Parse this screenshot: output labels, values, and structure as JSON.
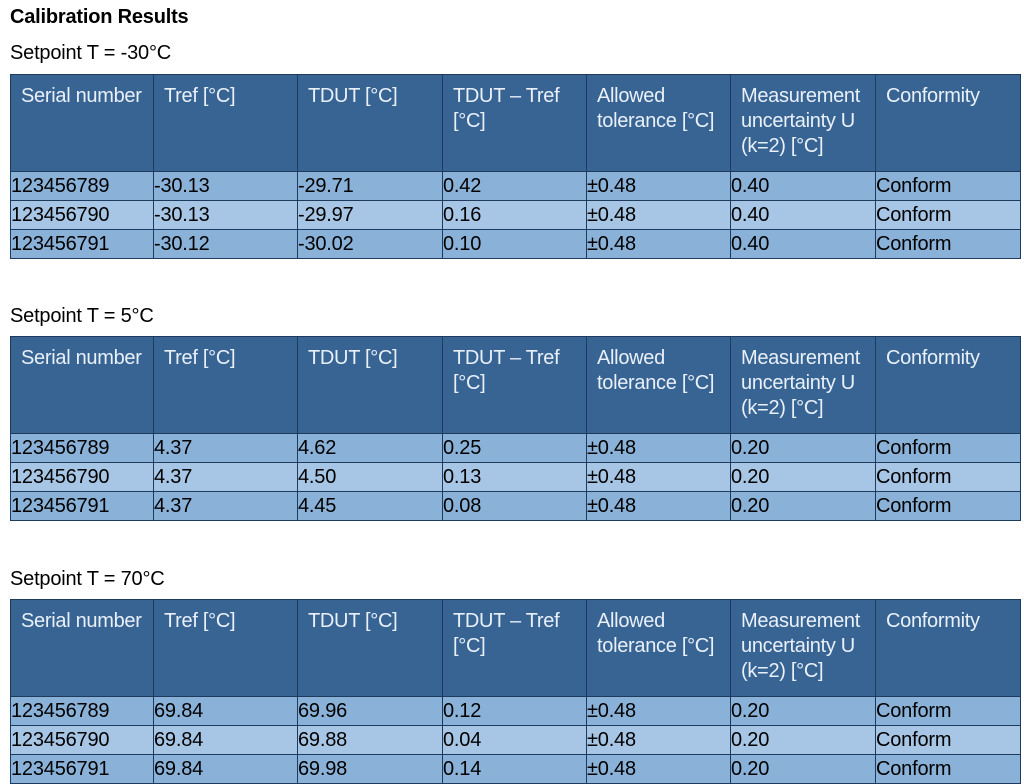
{
  "title": "Calibration Results",
  "headers": [
    "Serial number",
    "Tref [°C]",
    "TDUT [°C]",
    "TDUT – Tref [°C]",
    "Allowed tolerance [°C]",
    "Measurement uncertainty U (k=2) [°C]",
    "Conformity"
  ],
  "sections": [
    {
      "setpoint": "Setpoint T = -30°C",
      "rows": [
        {
          "serial": "123456789",
          "tref": "-30.13",
          "tdut": "-29.71",
          "diff": "0.42",
          "tolerance": "±0.48",
          "uncertainty": "0.40",
          "conformity": "Conform"
        },
        {
          "serial": "123456790",
          "tref": "-30.13",
          "tdut": "-29.97",
          "diff": "0.16",
          "tolerance": "±0.48",
          "uncertainty": "0.40",
          "conformity": "Conform"
        },
        {
          "serial": "123456791",
          "tref": "-30.12",
          "tdut": "-30.02",
          "diff": "0.10",
          "tolerance": "±0.48",
          "uncertainty": "0.40",
          "conformity": "Conform"
        }
      ]
    },
    {
      "setpoint": "Setpoint T = 5°C",
      "rows": [
        {
          "serial": "123456789",
          "tref": "4.37",
          "tdut": "4.62",
          "diff": "0.25",
          "tolerance": "±0.48",
          "uncertainty": "0.20",
          "conformity": "Conform"
        },
        {
          "serial": "123456790",
          "tref": "4.37",
          "tdut": "4.50",
          "diff": "0.13",
          "tolerance": "±0.48",
          "uncertainty": "0.20",
          "conformity": "Conform"
        },
        {
          "serial": "123456791",
          "tref": "4.37",
          "tdut": "4.45",
          "diff": "0.08",
          "tolerance": "±0.48",
          "uncertainty": "0.20",
          "conformity": "Conform"
        }
      ]
    },
    {
      "setpoint": "Setpoint T = 70°C",
      "rows": [
        {
          "serial": "123456789",
          "tref": "69.84",
          "tdut": "69.96",
          "diff": "0.12",
          "tolerance": "±0.48",
          "uncertainty": "0.20",
          "conformity": "Conform"
        },
        {
          "serial": "123456790",
          "tref": "69.84",
          "tdut": "69.88",
          "diff": "0.04",
          "tolerance": "±0.48",
          "uncertainty": "0.20",
          "conformity": "Conform"
        },
        {
          "serial": "123456791",
          "tref": "69.84",
          "tdut": "69.98",
          "diff": "0.14",
          "tolerance": "±0.48",
          "uncertainty": "0.20",
          "conformity": "Conform"
        }
      ]
    }
  ],
  "colors": {
    "header_bg": "#386494",
    "row_dark": "#8ab2d8",
    "row_light": "#a7c6e5"
  }
}
